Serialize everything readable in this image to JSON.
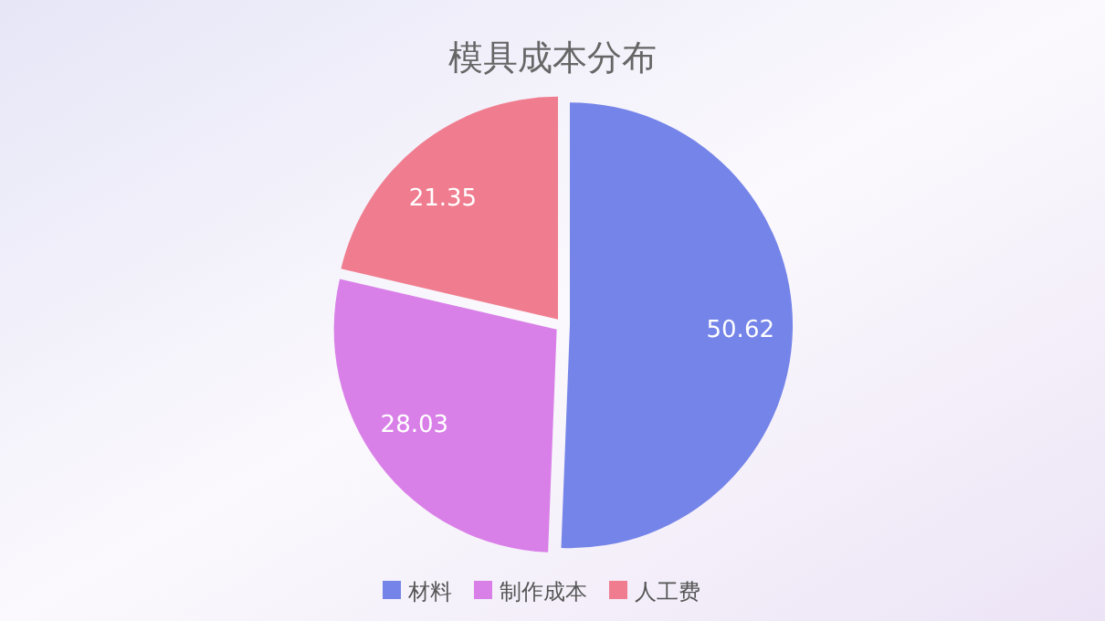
{
  "chart_data": {
    "type": "pie",
    "title": "模具成本分布",
    "categories": [
      "材料",
      "制作成本",
      "人工费"
    ],
    "values": [
      50.62,
      28.03,
      21.35
    ],
    "colors": [
      "#7584e8",
      "#d980e8",
      "#f07d8f"
    ],
    "data_labels": true,
    "legend": "bottom"
  }
}
